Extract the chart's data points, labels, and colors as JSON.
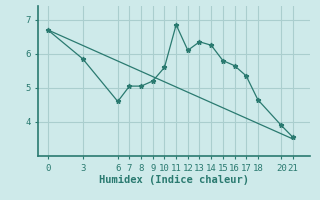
{
  "xlabel": "Humidex (Indice chaleur)",
  "bg_color": "#ceeaea",
  "grid_color": "#aacece",
  "line_color": "#2a7a70",
  "curve_x": [
    0,
    3,
    6,
    7,
    8,
    9,
    10,
    11,
    12,
    13,
    14,
    15,
    16,
    17,
    18,
    20,
    21
  ],
  "curve_y": [
    6.7,
    5.85,
    4.6,
    5.05,
    5.05,
    5.2,
    5.6,
    6.85,
    6.1,
    6.35,
    6.25,
    5.8,
    5.65,
    5.35,
    4.65,
    3.9,
    3.55
  ],
  "trend_x": [
    0,
    21
  ],
  "trend_y": [
    6.7,
    3.5
  ],
  "xlim": [
    -0.8,
    22.5
  ],
  "ylim": [
    3.0,
    7.4
  ],
  "xticks": [
    0,
    3,
    6,
    7,
    8,
    9,
    10,
    11,
    12,
    13,
    14,
    15,
    16,
    17,
    18,
    20,
    21
  ],
  "yticks": [
    4,
    5,
    6,
    7
  ],
  "tick_fontsize": 6.5,
  "label_fontsize": 7.5
}
